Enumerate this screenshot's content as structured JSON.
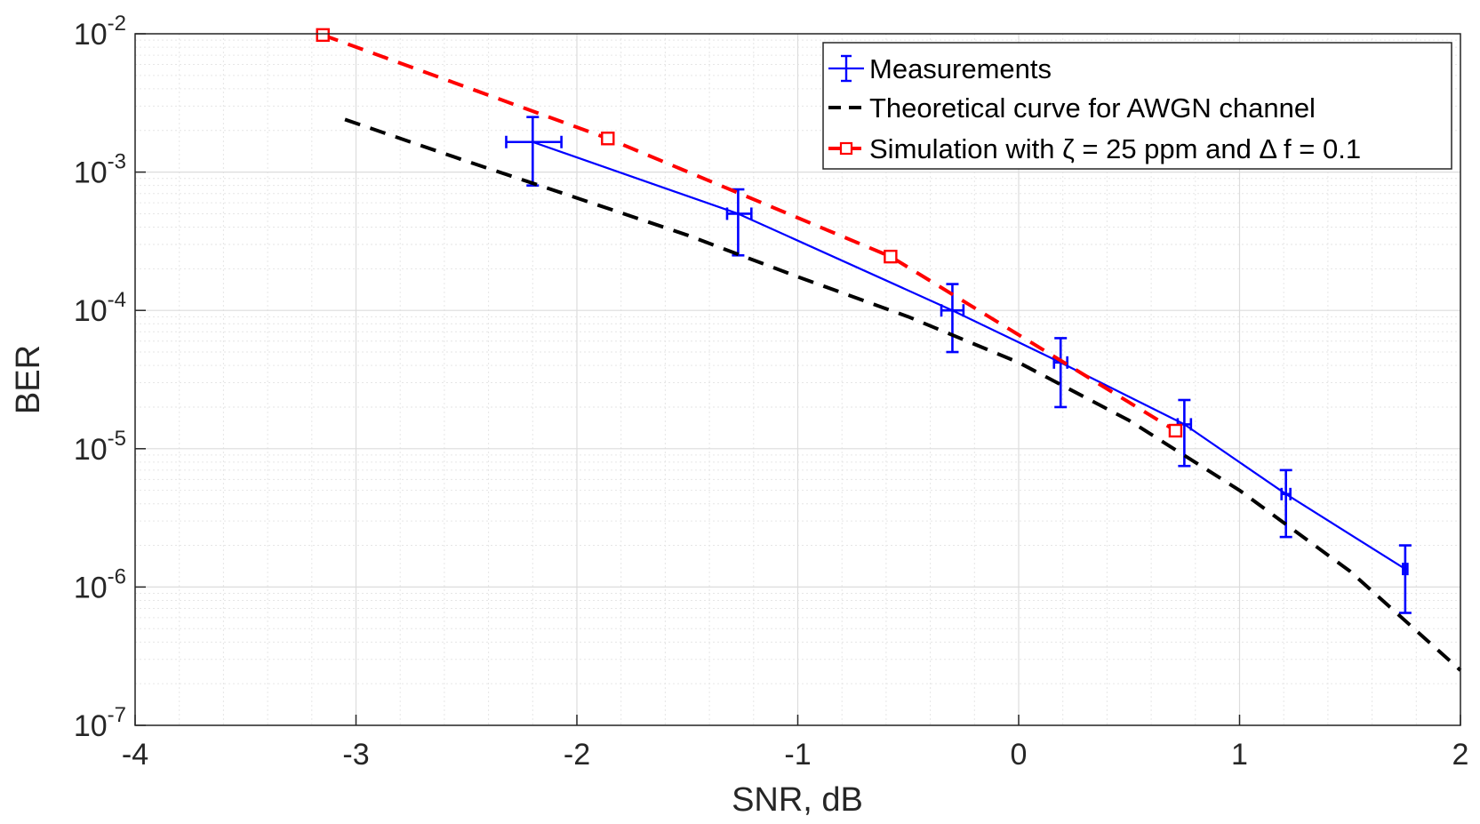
{
  "chart_data": {
    "type": "line",
    "xlabel": "SNR, dB",
    "ylabel": "BER",
    "xlim": [
      -4,
      2
    ],
    "ylim": [
      1e-07,
      0.01
    ],
    "yscale": "log",
    "grid": true,
    "minor_grid": true,
    "legend_position": "top-right",
    "x_ticks": [
      {
        "value": -4,
        "label": "-4"
      },
      {
        "value": -3,
        "label": "-3"
      },
      {
        "value": -2,
        "label": "-2"
      },
      {
        "value": -1,
        "label": "-1"
      },
      {
        "value": 0,
        "label": "0"
      },
      {
        "value": 1,
        "label": "1"
      },
      {
        "value": 2,
        "label": "2"
      }
    ],
    "y_ticks": [
      {
        "value": 0.01,
        "base": "10",
        "exp": "-2"
      },
      {
        "value": 0.001,
        "base": "10",
        "exp": "-3"
      },
      {
        "value": 0.0001,
        "base": "10",
        "exp": "-4"
      },
      {
        "value": 1e-05,
        "base": "10",
        "exp": "-5"
      },
      {
        "value": 1e-06,
        "base": "10",
        "exp": "-6"
      },
      {
        "value": 1e-07,
        "base": "10",
        "exp": "-7"
      }
    ],
    "series": [
      {
        "name": "Measurements",
        "color": "#0000FF",
        "style": "solid",
        "marker": "errorbar",
        "points": [
          {
            "x": -2.2,
            "y": 0.00165,
            "ylow": 0.0008,
            "yhigh": 0.0025,
            "xlow": -2.32,
            "xhigh": -2.07
          },
          {
            "x": -1.27,
            "y": 0.0005,
            "ylow": 0.00025,
            "yhigh": 0.00075,
            "xlow": -1.32,
            "xhigh": -1.21
          },
          {
            "x": -0.3,
            "y": 0.0001,
            "ylow": 5e-05,
            "yhigh": 0.000155,
            "xlow": -0.35,
            "xhigh": -0.25
          },
          {
            "x": 0.19,
            "y": 4.2e-05,
            "ylow": 2e-05,
            "yhigh": 6.3e-05,
            "xlow": 0.16,
            "xhigh": 0.22
          },
          {
            "x": 0.75,
            "y": 1.5e-05,
            "ylow": 7.5e-06,
            "yhigh": 2.25e-05,
            "xlow": 0.72,
            "xhigh": 0.78
          },
          {
            "x": 1.21,
            "y": 4.7e-06,
            "ylow": 2.3e-06,
            "yhigh": 7e-06,
            "xlow": 1.19,
            "xhigh": 1.23
          },
          {
            "x": 1.75,
            "y": 1.35e-06,
            "ylow": 6.5e-07,
            "yhigh": 2e-06,
            "xlow": 1.74,
            "xhigh": 1.76
          }
        ]
      },
      {
        "name": "Theoretical curve for AWGN channel",
        "color": "#000000",
        "style": "dashed",
        "marker": "none",
        "points": [
          {
            "x": -3.05,
            "y": 0.0024
          },
          {
            "x": -2.5,
            "y": 0.0012
          },
          {
            "x": -2.0,
            "y": 0.00065
          },
          {
            "x": -1.5,
            "y": 0.00035
          },
          {
            "x": -1.0,
            "y": 0.000175
          },
          {
            "x": -0.5,
            "y": 9e-05
          },
          {
            "x": 0.0,
            "y": 4.2e-05
          },
          {
            "x": 0.5,
            "y": 1.6e-05
          },
          {
            "x": 1.0,
            "y": 5e-06
          },
          {
            "x": 1.5,
            "y": 1.3e-06
          },
          {
            "x": 2.0,
            "y": 2.5e-07
          }
        ]
      },
      {
        "name": "Simulation with ζ = 25 ppm and Δ f = 0.1",
        "color": "#FF0000",
        "style": "dashed",
        "marker": "square",
        "points": [
          {
            "x": -3.15,
            "y": 0.0098
          },
          {
            "x": -1.86,
            "y": 0.00175
          },
          {
            "x": -0.58,
            "y": 0.000245
          },
          {
            "x": 0.71,
            "y": 1.35e-05
          }
        ]
      }
    ],
    "legend": [
      {
        "text": "Measurements"
      },
      {
        "text": "Theoretical curve for AWGN channel"
      },
      {
        "text": "Simulation with ζ = 25 ppm and Δ f = 0.1"
      }
    ]
  }
}
